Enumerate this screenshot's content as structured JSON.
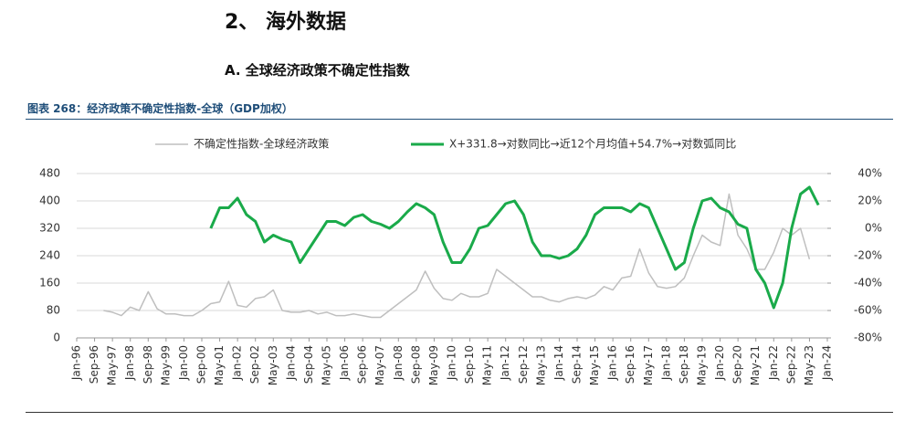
{
  "section": "2、 海外数据",
  "subsection": "A.  全球经济政策不确定性指数",
  "caption": "图表 268：经济政策不确定性指数-全球（GDP加权）",
  "chart_data": {
    "type": "line",
    "x": [
      "Jan-97",
      "May-97",
      "Sep-97",
      "Jan-98",
      "May-98",
      "Sep-98",
      "Jan-99",
      "May-99",
      "Sep-99",
      "Jan-00",
      "May-00",
      "Sep-00",
      "Jan-01",
      "May-01",
      "Sep-01",
      "Jan-02",
      "May-02",
      "Sep-02",
      "Jan-03",
      "May-03",
      "Sep-03",
      "Jan-04",
      "May-04",
      "Sep-04",
      "Jan-05",
      "May-05",
      "Sep-05",
      "Jan-06",
      "May-06",
      "Sep-06",
      "Jan-07",
      "May-07",
      "Sep-07",
      "Jan-08",
      "May-08",
      "Sep-08",
      "Jan-09",
      "May-09",
      "Sep-09",
      "Jan-10",
      "May-10",
      "Sep-10",
      "Jan-11",
      "May-11",
      "Sep-11",
      "Jan-12",
      "May-12",
      "Sep-12",
      "Jan-13",
      "May-13",
      "Sep-13",
      "Jan-14",
      "May-14",
      "Sep-14",
      "Jan-15",
      "May-15",
      "Sep-15",
      "Jan-16",
      "May-16",
      "Sep-16",
      "Jan-17",
      "May-17",
      "Sep-17",
      "Jan-18",
      "May-18",
      "Sep-18",
      "Jan-19",
      "May-19",
      "Sep-19",
      "Jan-20",
      "May-20",
      "Sep-20",
      "Jan-21",
      "May-21",
      "Sep-21",
      "Jan-22",
      "May-22",
      "Sep-22",
      "Jan-23",
      "May-23",
      "Sep-23"
    ],
    "series": [
      {
        "name": "不确定性指数-全球经济政策",
        "color": "#bfbfbf",
        "axis": "y",
        "values": [
          80,
          75,
          65,
          90,
          80,
          135,
          85,
          70,
          70,
          65,
          65,
          80,
          100,
          105,
          165,
          95,
          90,
          115,
          120,
          140,
          80,
          75,
          75,
          80,
          70,
          75,
          65,
          65,
          70,
          65,
          60,
          60,
          80,
          100,
          120,
          140,
          195,
          145,
          115,
          110,
          130,
          120,
          120,
          130,
          200,
          180,
          160,
          140,
          120,
          120,
          110,
          105,
          115,
          120,
          115,
          125,
          150,
          140,
          175,
          180,
          260,
          190,
          150,
          145,
          150,
          175,
          240,
          300,
          280,
          270,
          420,
          300,
          260,
          200,
          200,
          250,
          320,
          300,
          320,
          230,
          null
        ]
      },
      {
        "name": "X+331.8→对数同比→近12个月均值+54.7%→对数弧同比",
        "color": "#1aaa4a",
        "axis": "y2",
        "values": [
          null,
          null,
          null,
          null,
          null,
          null,
          null,
          null,
          null,
          null,
          null,
          null,
          0,
          15,
          15,
          22,
          10,
          5,
          -10,
          -5,
          -8,
          -10,
          -25,
          -15,
          -5,
          5,
          5,
          2,
          8,
          10,
          5,
          3,
          0,
          5,
          12,
          18,
          15,
          10,
          -10,
          -25,
          -25,
          -15,
          0,
          2,
          10,
          18,
          20,
          10,
          -10,
          -20,
          -20,
          -22,
          -20,
          -15,
          -5,
          10,
          15,
          15,
          15,
          12,
          18,
          15,
          0,
          -15,
          -30,
          -25,
          0,
          20,
          22,
          15,
          12,
          3,
          0,
          -30,
          -40,
          -58,
          -40,
          0,
          25,
          30,
          17
        ]
      }
    ],
    "ylim": [
      0,
      480
    ],
    "yticks": [
      0,
      80,
      160,
      240,
      320,
      400,
      480
    ],
    "y2lim": [
      -80,
      40
    ],
    "y2ticks": [
      {
        "value": -80,
        "label": "-80%"
      },
      {
        "value": -60,
        "label": "-60%"
      },
      {
        "value": -40,
        "label": "-40%"
      },
      {
        "value": -20,
        "label": "-20%"
      },
      {
        "value": 0,
        "label": "0%"
      },
      {
        "value": 20,
        "label": "20%"
      },
      {
        "value": 40,
        "label": "40%"
      }
    ],
    "xlim": [
      "Jan-96",
      "Jan-24"
    ],
    "xticks": [
      "Jan-96",
      "Sep-96",
      "May-97",
      "Jan-98",
      "Sep-98",
      "May-99",
      "Jan-00",
      "Sep-00",
      "May-01",
      "Jan-02",
      "Sep-02",
      "May-03",
      "Jan-04",
      "Sep-04",
      "May-05",
      "Jan-06",
      "Sep-06",
      "May-07",
      "Jan-08",
      "Sep-08",
      "May-09",
      "Jan-10",
      "Sep-10",
      "May-11",
      "Jan-12",
      "Sep-12",
      "May-13",
      "Jan-14",
      "Sep-14",
      "May-15",
      "Jan-16",
      "Sep-16",
      "May-17",
      "Jan-18",
      "Sep-18",
      "May-19",
      "Jan-20",
      "Sep-20",
      "May-21",
      "Jan-22",
      "Sep-22",
      "May-23",
      "Jan-24"
    ]
  }
}
